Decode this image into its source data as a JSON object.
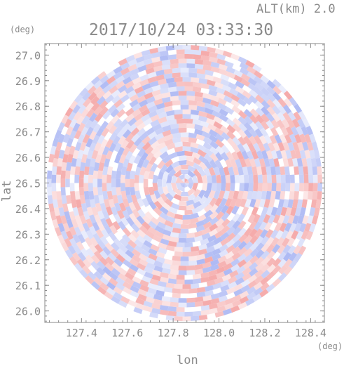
{
  "header": {
    "alt_label": "ALT(km) 2.0",
    "datetime": "2017/10/24 03:33:30"
  },
  "chart_data": {
    "type": "heatmap",
    "title": "2017/10/24 03:33:30",
    "subtitle": "ALT(km) 2.0",
    "xlabel": "lon",
    "ylabel": "lat",
    "x_unit": "(deg)",
    "y_unit": "(deg)",
    "xlim": [
      127.24,
      128.46
    ],
    "ylim": [
      25.955,
      27.045
    ],
    "x_ticks": [
      "127.4",
      "127.6",
      "127.8",
      "128.0",
      "128.2",
      "128.4"
    ],
    "y_ticks": [
      "27.0",
      "26.9",
      "26.8",
      "26.7",
      "26.6",
      "26.5",
      "26.4",
      "26.3",
      "26.2",
      "26.1",
      "26.0"
    ],
    "center": {
      "lon": 127.85,
      "lat": 26.5
    },
    "coverage_radius_deg_lat": 0.54,
    "colors": {
      "positive": "#f4a6a6",
      "negative": "#aab6f3",
      "neutral": "#ffffff",
      "axis": "#8a8a8a"
    },
    "grid": false,
    "legend": "none"
  }
}
